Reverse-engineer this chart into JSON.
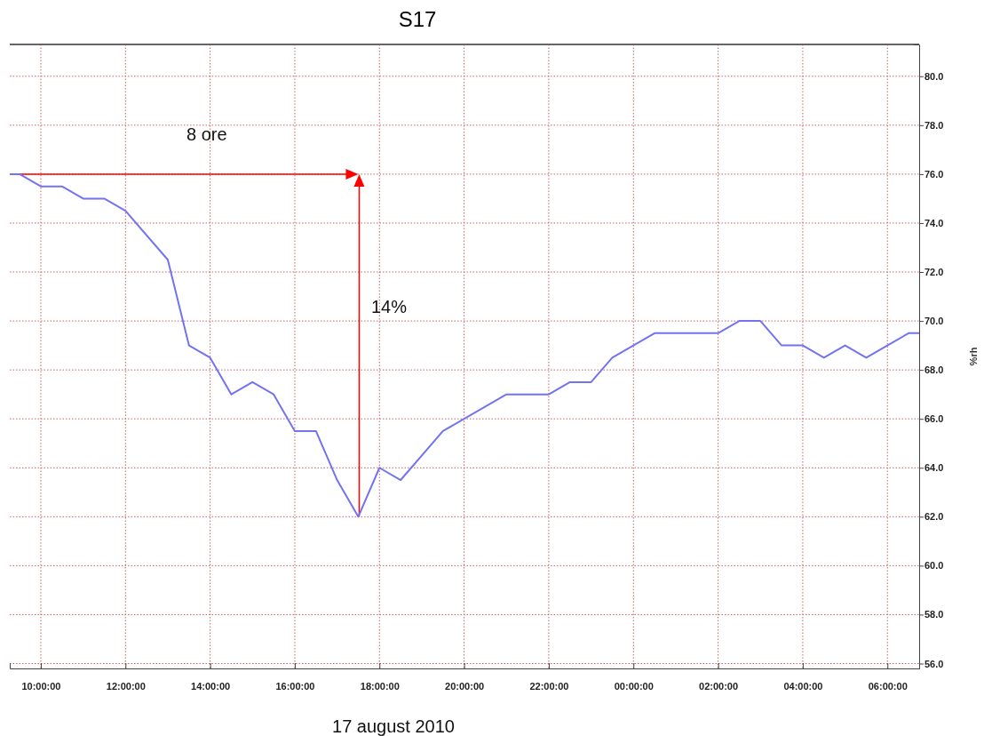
{
  "chart_data": {
    "type": "line",
    "title": "S17",
    "ylabel": "%rh",
    "annotations": [
      "8 ore",
      "14%",
      "17 august 2010"
    ],
    "x": [
      "2010-08-17T09:16",
      "2010-08-17T09:30",
      "2010-08-17T10:00",
      "2010-08-17T10:30",
      "2010-08-17T11:00",
      "2010-08-17T11:30",
      "2010-08-17T12:00",
      "2010-08-17T13:00",
      "2010-08-17T13:30",
      "2010-08-17T14:00",
      "2010-08-17T14:30",
      "2010-08-17T15:00",
      "2010-08-17T15:30",
      "2010-08-17T16:00",
      "2010-08-17T16:30",
      "2010-08-17T17:00",
      "2010-08-17T17:30",
      "2010-08-17T18:00",
      "2010-08-17T18:30",
      "2010-08-17T19:30",
      "2010-08-17T21:00",
      "2010-08-17T22:00",
      "2010-08-17T22:30",
      "2010-08-17T23:00",
      "2010-08-17T23:30",
      "2010-08-18T00:00",
      "2010-08-18T00:30",
      "2010-08-18T01:00",
      "2010-08-18T02:00",
      "2010-08-18T02:30",
      "2010-08-18T03:00",
      "2010-08-18T03:30",
      "2010-08-18T04:00",
      "2010-08-18T04:30",
      "2010-08-18T05:00",
      "2010-08-18T05:30",
      "2010-08-18T06:00",
      "2010-08-18T06:30",
      "2010-08-18T06:45"
    ],
    "series": [
      {
        "color": "#7373f2",
        "values": [
          76,
          76,
          75.5,
          75.5,
          75,
          75,
          74.5,
          72.5,
          69,
          68.5,
          67,
          67.5,
          67,
          65.5,
          65.5,
          63.5,
          62,
          64,
          63.5,
          65.5,
          67,
          67,
          67.5,
          67.5,
          68.5,
          69,
          69.5,
          69.5,
          69.5,
          70,
          70,
          69,
          69,
          68.5,
          69,
          68.5,
          69,
          69.5,
          69.5
        ]
      }
    ],
    "xlim": [
      "2010-08-17T09:16",
      "2010-08-18T06:45"
    ],
    "ylim": [
      55.8,
      81.3
    ],
    "xticks": [
      {
        "value": "2010-08-17T10:00",
        "label": "10:00:00"
      },
      {
        "value": "2010-08-17T12:00",
        "label": "12:00:00"
      },
      {
        "value": "2010-08-17T14:00",
        "label": "14:00:00"
      },
      {
        "value": "2010-08-17T16:00",
        "label": "16:00:00"
      },
      {
        "value": "2010-08-17T18:00",
        "label": "18:00:00"
      },
      {
        "value": "2010-08-17T20:00",
        "label": "20:00:00"
      },
      {
        "value": "2010-08-17T22:00",
        "label": "22:00:00"
      },
      {
        "value": "2010-08-18T00:00",
        "label": "00:00:00"
      },
      {
        "value": "2010-08-18T02:00",
        "label": "02:00:00"
      },
      {
        "value": "2010-08-18T04:00",
        "label": "04:00:00"
      },
      {
        "value": "2010-08-18T06:00",
        "label": "06:00:00"
      }
    ],
    "yticks": [
      {
        "value": 56,
        "label": "56.0"
      },
      {
        "value": 58,
        "label": "58.0"
      },
      {
        "value": 60,
        "label": "60.0"
      },
      {
        "value": 62,
        "label": "62.0"
      },
      {
        "value": 64,
        "label": "64.0"
      },
      {
        "value": 66,
        "label": "66.0"
      },
      {
        "value": 68,
        "label": "68.0"
      },
      {
        "value": 70,
        "label": "70.0"
      },
      {
        "value": 72,
        "label": "72.0"
      },
      {
        "value": 74,
        "label": "74.0"
      },
      {
        "value": 76,
        "label": "76.0"
      },
      {
        "value": 78,
        "label": "78.0"
      },
      {
        "value": 80,
        "label": "80.0"
      }
    ],
    "grid": true,
    "marker": "none",
    "line_style": "solid"
  }
}
